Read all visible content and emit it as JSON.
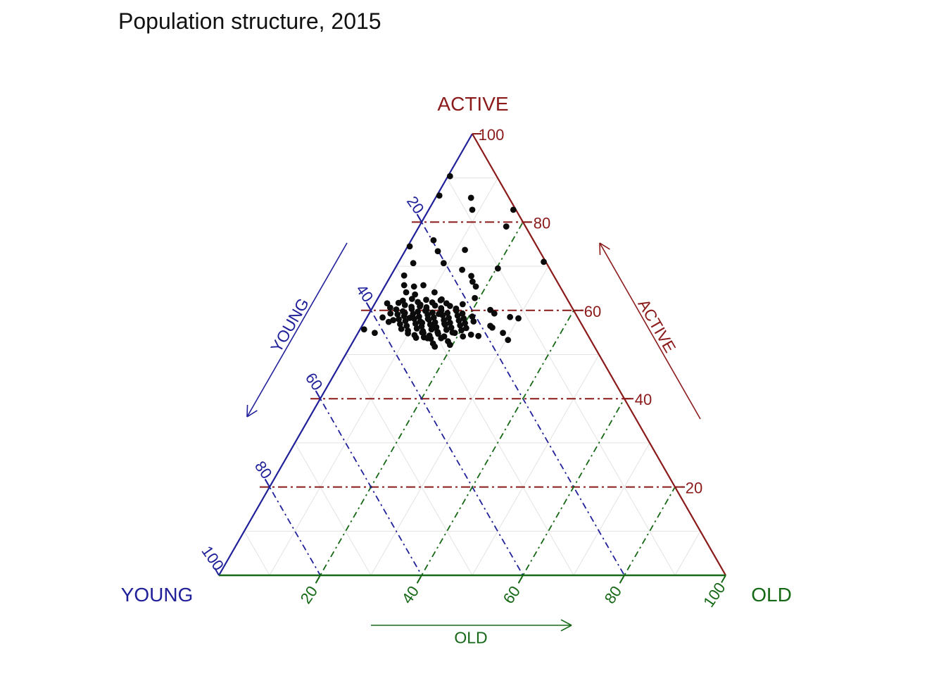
{
  "title": "Population structure, 2015",
  "chart_data": {
    "type": "scatter",
    "subtype": "ternary",
    "title": "Population structure, 2015",
    "axes": {
      "left": {
        "label": "YOUNG",
        "corner_label": "YOUNG",
        "color": "#20209A",
        "ticks": [
          20,
          40,
          60,
          80,
          100
        ],
        "arrow_direction": "toward-bottom-left"
      },
      "right": {
        "label": "ACTIVE",
        "corner_label": "ACTIVE",
        "color": "#8B1A1A",
        "ticks": [
          100,
          80,
          60,
          40,
          20
        ],
        "arrow_direction": "toward-top"
      },
      "bottom": {
        "label": "OLD",
        "corner_label": "OLD",
        "color": "#156815",
        "ticks": [
          20,
          40,
          60,
          80,
          100
        ],
        "arrow_direction": "toward-right"
      }
    },
    "grid": {
      "major_step": 20,
      "minor_step": 10,
      "minor_color": "#E2E2E2",
      "major_style": "dash-dot"
    },
    "point_color": "#0B0B0B",
    "point_radius": 4.4,
    "axis_range": [
      0,
      100
    ],
    "points_old_active": [
      [
        7,
        85.5
      ],
      [
        8.6,
        82.8
      ],
      [
        0.4,
        90.4
      ],
      [
        0.5,
        86
      ],
      [
        16.7,
        82.8
      ],
      [
        17.2,
        79
      ],
      [
        4.4,
        75.9
      ],
      [
        6.5,
        73.4
      ],
      [
        0.4,
        74.5
      ],
      [
        11.7,
        73.7
      ],
      [
        3,
        70.7
      ],
      [
        9,
        70.7
      ],
      [
        13.4,
        69.2
      ],
      [
        20.3,
        69.5
      ],
      [
        28.6,
        71
      ],
      [
        2.6,
        67.9
      ],
      [
        15.9,
        67.8
      ],
      [
        16.8,
        66.5
      ],
      [
        3.7,
        65.7
      ],
      [
        5.8,
        65.4
      ],
      [
        7.5,
        65.7
      ],
      [
        4.9,
        64.1
      ],
      [
        6.9,
        63.6
      ],
      [
        10.5,
        64.1
      ],
      [
        12.7,
        62.5
      ],
      [
        18,
        65.4
      ],
      [
        19.1,
        62.8
      ],
      [
        17.4,
        61.4
      ],
      [
        4.6,
        61.7
      ],
      [
        5.2,
        62.2
      ],
      [
        6.8,
        62.6
      ],
      [
        8.3,
        61.9
      ],
      [
        9.7,
        62.4
      ],
      [
        11.2,
        61.8
      ],
      [
        12.6,
        62.3
      ],
      [
        14.1,
        61.6
      ],
      [
        6.1,
        61.2
      ],
      [
        7.6,
        60.8
      ],
      [
        9.1,
        61.3
      ],
      [
        10.6,
        60.7
      ],
      [
        12.1,
        61.1
      ],
      [
        13.6,
        60.5
      ],
      [
        15.1,
        61
      ],
      [
        16.6,
        60.4
      ],
      [
        4.9,
        60.2
      ],
      [
        6.4,
        59.8
      ],
      [
        7.9,
        60.3
      ],
      [
        9.4,
        59.7
      ],
      [
        10.9,
        60.1
      ],
      [
        12.4,
        59.5
      ],
      [
        13.9,
        60
      ],
      [
        15.4,
        59.4
      ],
      [
        16.9,
        59.9
      ],
      [
        18.4,
        59.3
      ],
      [
        5.7,
        59.1
      ],
      [
        7.2,
        58.7
      ],
      [
        8.7,
        59.2
      ],
      [
        10.2,
        58.6
      ],
      [
        11.7,
        59
      ],
      [
        13.2,
        58.4
      ],
      [
        14.7,
        58.9
      ],
      [
        16.2,
        58.3
      ],
      [
        17.7,
        58.8
      ],
      [
        19.2,
        58.2
      ],
      [
        20.7,
        58.6
      ],
      [
        6.5,
        58
      ],
      [
        8,
        57.6
      ],
      [
        9.5,
        58.1
      ],
      [
        11,
        57.5
      ],
      [
        12.5,
        57.9
      ],
      [
        14,
        57.3
      ],
      [
        15.5,
        57.8
      ],
      [
        17,
        57.2
      ],
      [
        18.5,
        57.7
      ],
      [
        20,
        57.1
      ],
      [
        21.5,
        57.5
      ],
      [
        7.3,
        56.9
      ],
      [
        8.8,
        56.5
      ],
      [
        10.3,
        57
      ],
      [
        11.8,
        56.4
      ],
      [
        13.3,
        56.8
      ],
      [
        14.8,
        56.2
      ],
      [
        16.3,
        56.7
      ],
      [
        17.8,
        56.1
      ],
      [
        19.3,
        56.6
      ],
      [
        20.8,
        56
      ],
      [
        8.1,
        55.8
      ],
      [
        9.6,
        55.4
      ],
      [
        11.1,
        55.9
      ],
      [
        12.6,
        55.3
      ],
      [
        14.1,
        55.7
      ],
      [
        15.6,
        55.1
      ],
      [
        17.1,
        55.6
      ],
      [
        18.6,
        55
      ],
      [
        20.1,
        55.5
      ],
      [
        9.9,
        54.8
      ],
      [
        11.4,
        54.4
      ],
      [
        12.9,
        54.9
      ],
      [
        14.4,
        54.3
      ],
      [
        15.9,
        54.7
      ],
      [
        17.4,
        54.1
      ],
      [
        12,
        53.8
      ],
      [
        13.5,
        53.9
      ],
      [
        15,
        53.6
      ],
      [
        10.8,
        59.9
      ],
      [
        9.2,
        60.9
      ],
      [
        13.8,
        59.2
      ],
      [
        12.2,
        58.1
      ],
      [
        16,
        57
      ],
      [
        14.5,
        56.1
      ],
      [
        11.5,
        57.2
      ],
      [
        8.5,
        58.3
      ],
      [
        7,
        59.4
      ],
      [
        5.5,
        57.8
      ],
      [
        3.5,
        60.6
      ],
      [
        4.2,
        59.3
      ],
      [
        3.1,
        58.4
      ],
      [
        4.8,
        57.4
      ],
      [
        2.4,
        61.6
      ],
      [
        23.5,
        60.1
      ],
      [
        24.7,
        59.3
      ],
      [
        28.2,
        58.5
      ],
      [
        30,
        58.2
      ],
      [
        25.9,
        56.1
      ],
      [
        28.6,
        54.9
      ],
      [
        30.4,
        53.3
      ],
      [
        25.3,
        56.5
      ],
      [
        16.7,
        51.8
      ],
      [
        17,
        53.7
      ],
      [
        18.7,
        53
      ],
      [
        19.1,
        54.9
      ],
      [
        21.1,
        54.1
      ],
      [
        22.5,
        54.5
      ],
      [
        24.1,
        54.2
      ],
      [
        14.3,
        53.7
      ],
      [
        12.6,
        55
      ],
      [
        16,
        52.5
      ],
      [
        19.5,
        52.2
      ],
      [
        3.3,
        54.9
      ],
      [
        0.8,
        55.7
      ]
    ]
  }
}
